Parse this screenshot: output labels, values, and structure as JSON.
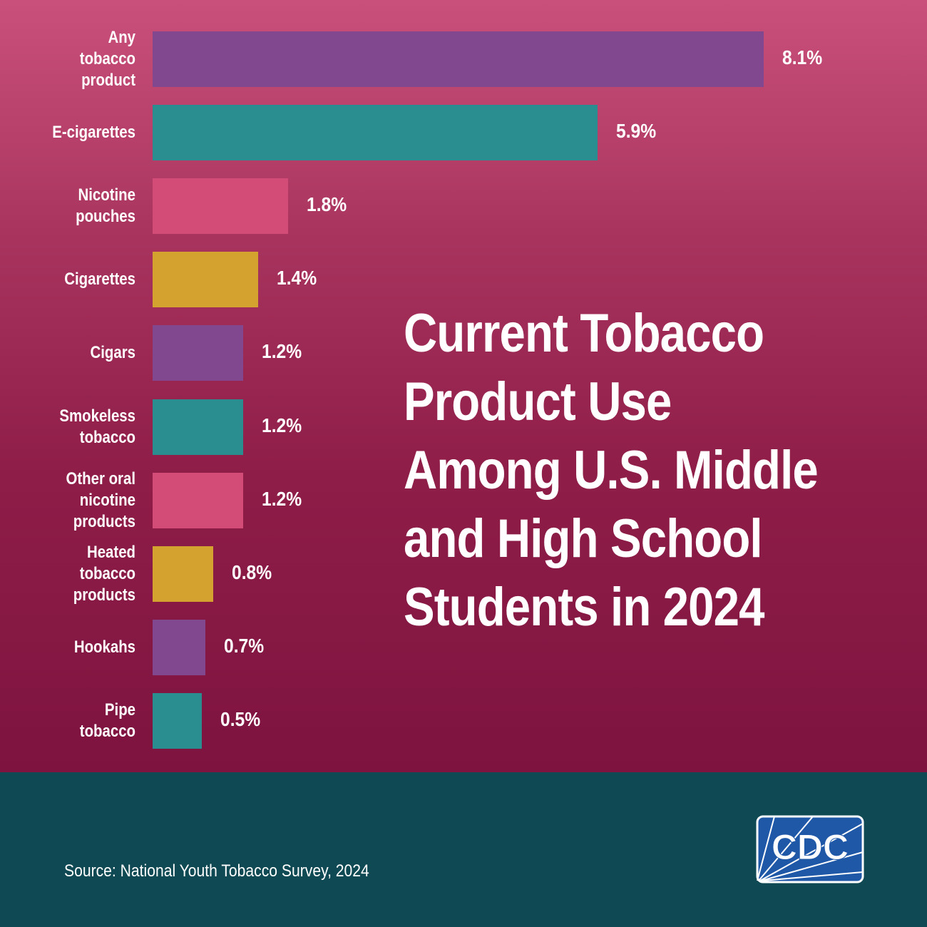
{
  "chart_data": {
    "type": "bar",
    "orientation": "horizontal",
    "title": "Current Tobacco Product Use Among U.S. Middle and High School Students in 2024",
    "categories": [
      "Any tobacco product",
      "E-cigarettes",
      "Nicotine pouches",
      "Cigarettes",
      "Cigars",
      "Smokeless tobacco",
      "Other oral nicotine products",
      "Heated tobacco products",
      "Hookahs",
      "Pipe tobacco"
    ],
    "values": [
      8.1,
      5.9,
      1.8,
      1.4,
      1.2,
      1.2,
      1.2,
      0.8,
      0.7,
      0.5
    ],
    "value_labels": [
      "8.1%",
      "5.9%",
      "1.8%",
      "1.4%",
      "1.2%",
      "1.2%",
      "1.2%",
      "0.8%",
      "0.7%",
      "0.5%"
    ],
    "colors": [
      "#82488f",
      "#2a8e91",
      "#d34b77",
      "#d4a22e",
      "#82488f",
      "#2a8e91",
      "#d34b77",
      "#d4a22e",
      "#82488f",
      "#2a8e91"
    ],
    "unit": "%",
    "grid": false,
    "legend": "none"
  },
  "source": "Source: National Youth Tobacco Survey, 2024",
  "logo": {
    "text": "CDC",
    "color": "#2058a8"
  },
  "colors": {
    "background_top": "#c9507a",
    "background_bottom": "#7e1340",
    "footer": "#0f4954"
  }
}
